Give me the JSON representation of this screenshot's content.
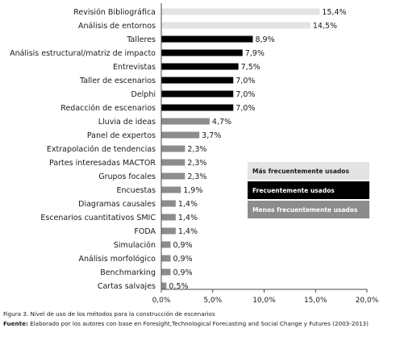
{
  "chart_data": {
    "type": "bar",
    "orientation": "horizontal",
    "categories": [
      "Revisión Bibliográfica",
      "Análisis de entornos",
      "Talleres",
      "Análisis estructural/matriz de impacto",
      "Entrevistas",
      "Taller de escenarios",
      "Delphi",
      "Redacción de escenarios",
      "Lluvia de ideas",
      "Panel de expertos",
      "Extrapolación de tendencias",
      "Partes interesadas  MACTOR",
      "Grupos focales",
      "Encuestas",
      "Diagramas causales",
      "Escenarios cuantitativos SMIC",
      "FODA",
      "Simulación",
      "Análisis morfológico",
      "Benchmarking",
      "Cartas salvajes"
    ],
    "values": [
      15.4,
      14.5,
      8.9,
      7.9,
      7.5,
      7.0,
      7.0,
      7.0,
      4.7,
      3.7,
      2.3,
      2.3,
      2.3,
      1.9,
      1.4,
      1.4,
      1.4,
      0.9,
      0.9,
      0.9,
      0.5
    ],
    "value_labels": [
      "15,4%",
      "14,5%",
      "8,9%",
      "7,9%",
      "7,5%",
      "7,0%",
      "7,0%",
      "7,0%",
      "4,7%",
      "3,7%",
      "2,3%",
      "2,3%",
      "2,3%",
      "1,9%",
      "1,4%",
      "1,4%",
      "1,4%",
      "0,9%",
      "0,9%",
      "0,9%",
      "0,5%"
    ],
    "groups": [
      0,
      0,
      1,
      1,
      1,
      1,
      1,
      1,
      2,
      2,
      2,
      2,
      2,
      2,
      2,
      2,
      2,
      2,
      2,
      2,
      2
    ],
    "xlim": [
      0,
      20
    ],
    "x_ticks": [
      "0,0%",
      "5,0%",
      "10,0%",
      "15,0%",
      "20,0%"
    ],
    "grid": false,
    "legend_position": "right",
    "legend": [
      {
        "label": "Más frecuentemente usados",
        "color": "#e3e3e3",
        "text_color": "#1a1a1a"
      },
      {
        "label": "Frecuentemente usados",
        "color": "#000000",
        "text_color": "#ffffff"
      },
      {
        "label": "Menos frecuentemente usados",
        "color": "#8c8c8c",
        "text_color": "#ffffff"
      }
    ]
  },
  "captions": {
    "figure": "Figura 3. Nivel de uso de los métodos para la construcción de escenarios",
    "source_label": "Fuente:",
    "source_text": " Elaborado por los autores con base en Foresight,Technological Forecasting and Social Change y Futures (2003-2013)"
  }
}
